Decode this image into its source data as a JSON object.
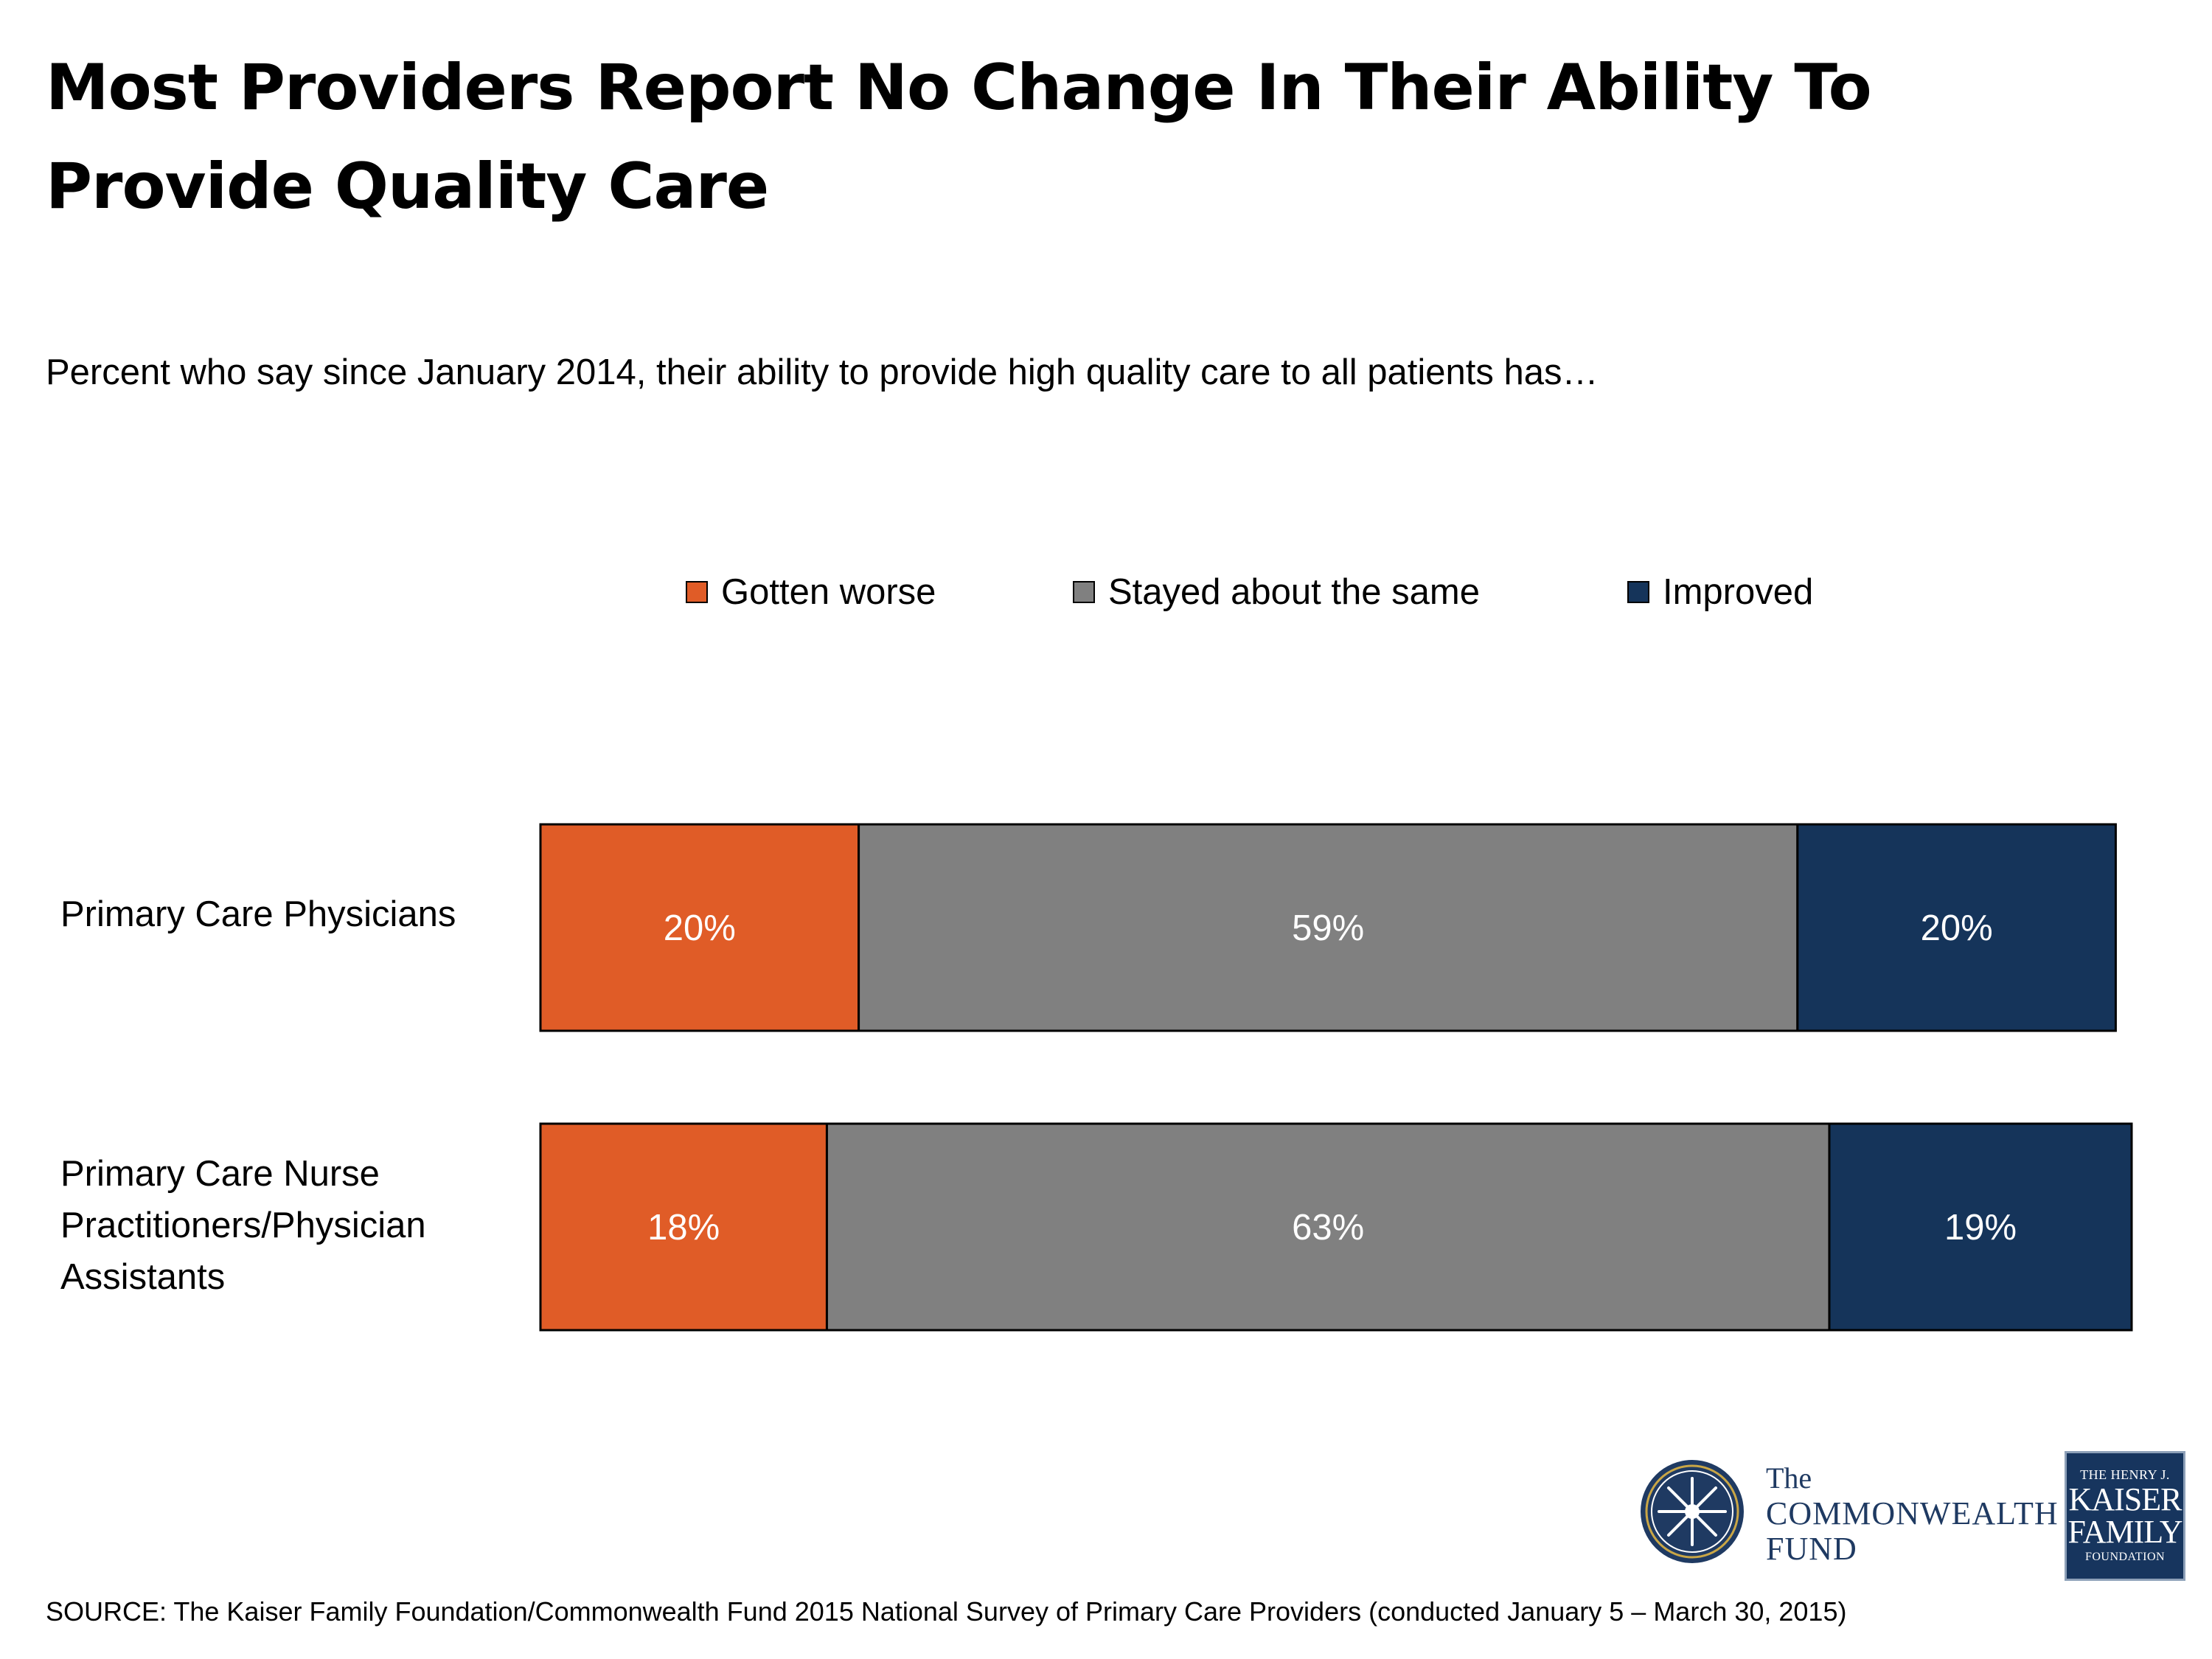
{
  "title": "Most Providers Report No Change In Their Ability To Provide Quality Care",
  "subtitle": "Percent who say since January 2014, their ability to provide high quality care to all patients has…",
  "chart_data": {
    "type": "bar",
    "orientation": "horizontal",
    "stacked": true,
    "categories": [
      "Primary Care Physicians",
      "Primary Care Nurse Practitioners/Physician Assistants"
    ],
    "series": [
      {
        "name": "Gotten worse",
        "color": "#e05c27",
        "values": [
          20,
          18
        ],
        "labels": [
          "20%",
          "18%"
        ]
      },
      {
        "name": "Stayed about the same",
        "color": "#808080",
        "values": [
          59,
          63
        ],
        "labels": [
          "59%",
          "63%"
        ]
      },
      {
        "name": "Improved",
        "color": "#15345a",
        "values": [
          20,
          19
        ],
        "labels": [
          "20%",
          "19%"
        ]
      }
    ],
    "legend_position": "top",
    "grid": false
  },
  "source": "SOURCE: The Kaiser Family Foundation/Commonwealth Fund 2015 National Survey of Primary Care Providers (conducted January 5 – March 30, 2015)",
  "logos": {
    "commonwealth": {
      "line1": "The",
      "line2": "COMMONWEALTH",
      "line3": "FUND"
    },
    "kaiser": {
      "line1": "THE HENRY J.",
      "line2": "KAISER",
      "line3": "FAMILY",
      "line4": "FOUNDATION"
    }
  }
}
